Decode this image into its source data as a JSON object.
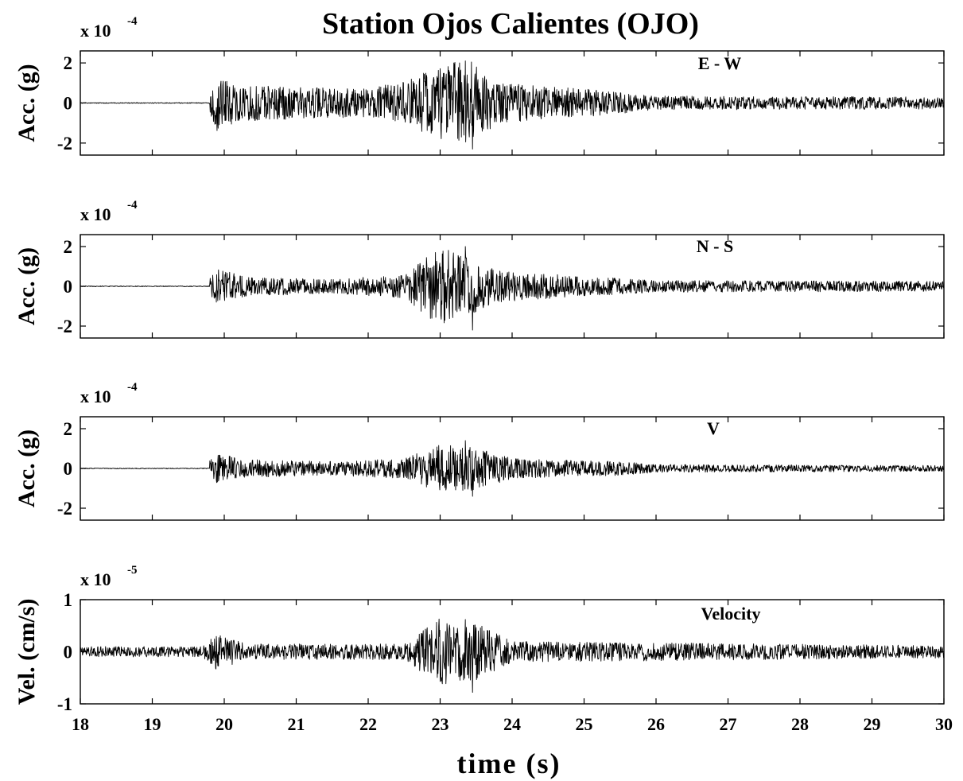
{
  "figure": {
    "title": "Station Ojos Calientes (OJO)",
    "xlabel": "time (s)"
  },
  "chart_data": [
    {
      "type": "line",
      "panel_label": "E - W",
      "ylabel": "Acc. (g)",
      "scale_base": "x 10",
      "scale_exponent": "-4",
      "xlim": [
        18,
        30
      ],
      "ylim": [
        -2.6,
        2.6
      ],
      "yticks": [
        -2,
        0,
        2
      ],
      "x_ticks": [
        18,
        19,
        20,
        21,
        22,
        23,
        24,
        25,
        26,
        27,
        28,
        29,
        30
      ],
      "onset_s": 19.8,
      "noise_amplitude_before_onset": 0.02,
      "envelope": [
        {
          "x": 19.8,
          "y": 0.5
        },
        {
          "x": 19.9,
          "y": 1.4
        },
        {
          "x": 20.2,
          "y": 0.9
        },
        {
          "x": 21.0,
          "y": 0.8
        },
        {
          "x": 22.0,
          "y": 0.7
        },
        {
          "x": 22.6,
          "y": 1.2
        },
        {
          "x": 23.0,
          "y": 1.9
        },
        {
          "x": 23.4,
          "y": 2.2
        },
        {
          "x": 23.8,
          "y": 1.0
        },
        {
          "x": 25.0,
          "y": 0.7
        },
        {
          "x": 26.0,
          "y": 0.35
        },
        {
          "x": 30.0,
          "y": 0.3
        }
      ],
      "peak_max": 2.1,
      "peak_min": -2.3
    },
    {
      "type": "line",
      "panel_label": "N - S",
      "ylabel": "Acc. (g)",
      "scale_base": "x 10",
      "scale_exponent": "-4",
      "xlim": [
        18,
        30
      ],
      "ylim": [
        -2.6,
        2.6
      ],
      "yticks": [
        -2,
        0,
        2
      ],
      "x_ticks": [
        18,
        19,
        20,
        21,
        22,
        23,
        24,
        25,
        26,
        27,
        28,
        29,
        30
      ],
      "onset_s": 19.8,
      "noise_amplitude_before_onset": 0.02,
      "envelope": [
        {
          "x": 19.8,
          "y": 0.4
        },
        {
          "x": 19.9,
          "y": 0.9
        },
        {
          "x": 20.3,
          "y": 0.5
        },
        {
          "x": 21.5,
          "y": 0.35
        },
        {
          "x": 22.5,
          "y": 0.6
        },
        {
          "x": 23.0,
          "y": 2.0
        },
        {
          "x": 23.3,
          "y": 1.6
        },
        {
          "x": 23.8,
          "y": 0.8
        },
        {
          "x": 25.0,
          "y": 0.5
        },
        {
          "x": 26.0,
          "y": 0.3
        },
        {
          "x": 30.0,
          "y": 0.25
        }
      ],
      "peak_max": 2.0,
      "peak_min": -2.2
    },
    {
      "type": "line",
      "panel_label": "V",
      "ylabel": "Acc. (g)",
      "scale_base": "x 10",
      "scale_exponent": "-4",
      "xlim": [
        18,
        30
      ],
      "ylim": [
        -2.6,
        2.6
      ],
      "yticks": [
        -2,
        0,
        2
      ],
      "x_ticks": [
        18,
        19,
        20,
        21,
        22,
        23,
        24,
        25,
        26,
        27,
        28,
        29,
        30
      ],
      "onset_s": 19.8,
      "noise_amplitude_before_onset": 0.02,
      "envelope": [
        {
          "x": 19.8,
          "y": 0.4
        },
        {
          "x": 19.9,
          "y": 0.8
        },
        {
          "x": 20.3,
          "y": 0.45
        },
        {
          "x": 21.5,
          "y": 0.35
        },
        {
          "x": 22.5,
          "y": 0.5
        },
        {
          "x": 23.0,
          "y": 1.2
        },
        {
          "x": 23.5,
          "y": 1.1
        },
        {
          "x": 24.0,
          "y": 0.5
        },
        {
          "x": 25.5,
          "y": 0.35
        },
        {
          "x": 26.0,
          "y": 0.2
        },
        {
          "x": 30.0,
          "y": 0.15
        }
      ],
      "peak_max": 1.4,
      "peak_min": -1.4
    },
    {
      "type": "line",
      "panel_label": "Velocity",
      "ylabel": "Vel. (cm/s)",
      "scale_base": "x 10",
      "scale_exponent": "-5",
      "xlim": [
        18,
        30
      ],
      "ylim": [
        -1,
        1
      ],
      "yticks": [
        -1,
        0,
        1
      ],
      "x_ticks": [
        18,
        19,
        20,
        21,
        22,
        23,
        24,
        25,
        26,
        27,
        28,
        29,
        30
      ],
      "onset_s": 18.0,
      "noise_amplitude_before_onset": 0.1,
      "envelope": [
        {
          "x": 18.0,
          "y": 0.1
        },
        {
          "x": 19.7,
          "y": 0.1
        },
        {
          "x": 19.9,
          "y": 0.35
        },
        {
          "x": 20.3,
          "y": 0.15
        },
        {
          "x": 22.5,
          "y": 0.15
        },
        {
          "x": 23.0,
          "y": 0.65
        },
        {
          "x": 23.5,
          "y": 0.55
        },
        {
          "x": 24.0,
          "y": 0.2
        },
        {
          "x": 30.0,
          "y": 0.12
        }
      ],
      "peak_max": 0.62,
      "peak_min": -0.78
    }
  ]
}
